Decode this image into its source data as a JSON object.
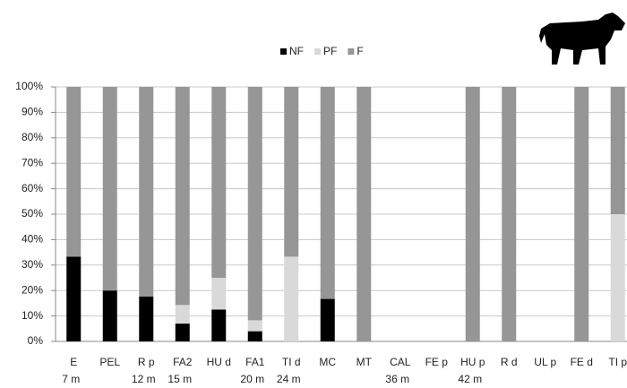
{
  "chart_data": {
    "type": "stacked_bar",
    "categories": [
      "E",
      "PEL",
      "R p",
      "FA2",
      "HU d",
      "FA1",
      "TI d",
      "MC",
      "MT",
      "CAL",
      "FE p",
      "HU p",
      "R d",
      "UL p",
      "FE d",
      "TI p"
    ],
    "x_sublabels": [
      "7 m",
      null,
      "12 m",
      "15 m",
      null,
      "20 m",
      "24 m",
      null,
      null,
      "36 m",
      null,
      "42 m",
      null,
      null,
      null,
      null
    ],
    "series": [
      {
        "name": "NF",
        "color": "#000000",
        "values": [
          33.3,
          20,
          17.6,
          7,
          12.5,
          4,
          0,
          16.7,
          0,
          0,
          0,
          0,
          0,
          0,
          0,
          0
        ]
      },
      {
        "name": "PF",
        "color": "#d9d9d9",
        "values": [
          0,
          0,
          0,
          7.3,
          12.5,
          4.3,
          33.3,
          0,
          0,
          0,
          0,
          0,
          0,
          0,
          0,
          50
        ]
      },
      {
        "name": "F",
        "color": "#969696",
        "values": [
          66.7,
          80,
          82.4,
          85.7,
          75,
          91.7,
          66.7,
          83.3,
          100,
          0,
          0,
          100,
          100,
          0,
          100,
          50
        ]
      }
    ],
    "ylim": [
      0,
      100
    ],
    "yticks": [
      {
        "value": 0,
        "label": "0%"
      },
      {
        "value": 10,
        "label": "10%"
      },
      {
        "value": 20,
        "label": "20%"
      },
      {
        "value": 30,
        "label": "30%"
      },
      {
        "value": 40,
        "label": "40%"
      },
      {
        "value": 50,
        "label": "50%"
      },
      {
        "value": 60,
        "label": "60%"
      },
      {
        "value": 70,
        "label": "70%"
      },
      {
        "value": 80,
        "label": "80%"
      },
      {
        "value": 90,
        "label": "90%"
      },
      {
        "value": 100,
        "label": "100%"
      }
    ],
    "grid": true,
    "legend": "top"
  }
}
